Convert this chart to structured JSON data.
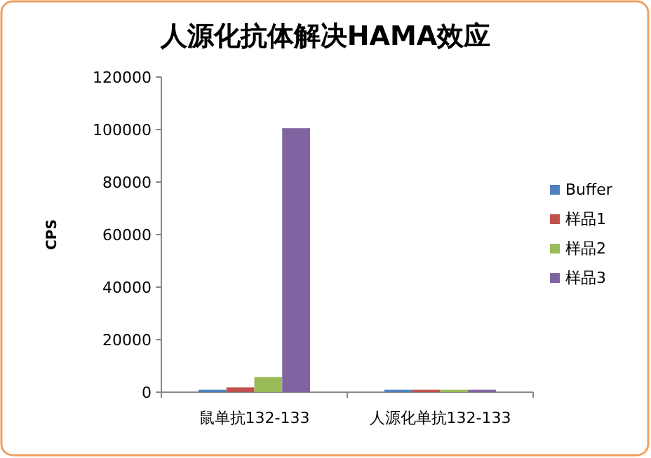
{
  "chart_data": {
    "type": "bar",
    "title": "人源化抗体解决HAMA效应",
    "ylabel": "CPS",
    "categories": [
      "鼠单抗132-133",
      "人源化单抗132-133"
    ],
    "series": [
      {
        "name": "Buffer",
        "color": "#4f81bd",
        "values": [
          900,
          900
        ]
      },
      {
        "name": "样品1",
        "color": "#c0504d",
        "values": [
          1800,
          900
        ]
      },
      {
        "name": "样品2",
        "color": "#9bbb59",
        "values": [
          5800,
          900
        ]
      },
      {
        "name": "样品3",
        "color": "#8064a2",
        "values": [
          100500,
          900
        ]
      }
    ],
    "ylim": [
      0,
      120000
    ],
    "yticks": [
      0,
      20000,
      40000,
      60000,
      80000,
      100000,
      120000
    ],
    "grid": false,
    "legend": "right"
  }
}
